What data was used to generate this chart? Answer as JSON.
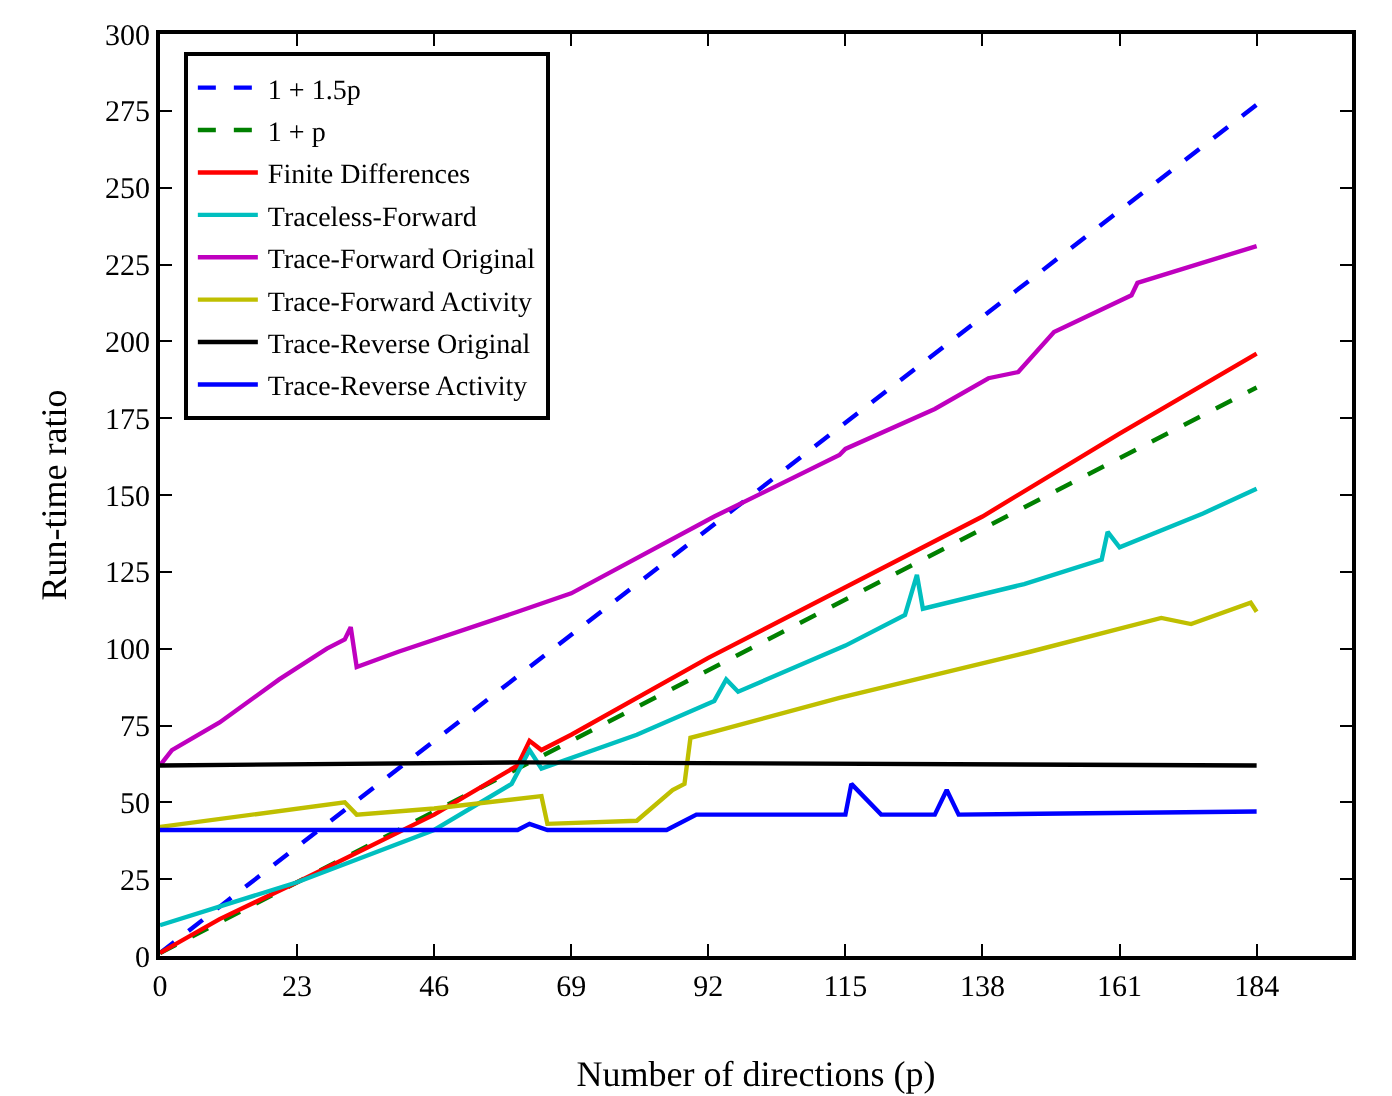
{
  "chart_data": {
    "type": "line",
    "xlabel": "Number of directions (p)",
    "ylabel": "Run-time ratio",
    "xlim": [
      0,
      200
    ],
    "ylim": [
      0,
      300
    ],
    "xticks": [
      0,
      23,
      46,
      69,
      92,
      115,
      138,
      161,
      184
    ],
    "yticks": [
      0,
      25,
      50,
      75,
      100,
      125,
      150,
      175,
      200,
      225,
      250,
      275,
      300
    ],
    "grid": false,
    "legend": "top left",
    "marker": "none",
    "series": [
      {
        "name": "1 + 1.5p",
        "color": "#0000ff",
        "line_style": "dashed",
        "x": [
          0,
          184
        ],
        "values": [
          1,
          277
        ]
      },
      {
        "name": "1 + p",
        "color": "#008000",
        "line_style": "dashed",
        "x": [
          0,
          184
        ],
        "values": [
          1,
          185
        ]
      },
      {
        "name": "Finite Differences",
        "color": "#ff0000",
        "line_style": "solid",
        "x": [
          0,
          10,
          23,
          46,
          60,
          62,
          64,
          69,
          92,
          115,
          138,
          161,
          184
        ],
        "values": [
          1,
          12,
          24,
          46,
          62,
          70,
          67,
          72,
          97,
          120,
          143,
          170,
          196
        ]
      },
      {
        "name": "Traceless-Forward",
        "color": "#00bfbf",
        "line_style": "solid",
        "x": [
          0,
          23,
          46,
          59,
          62,
          64,
          80,
          93,
          95,
          97,
          115,
          125,
          127,
          128,
          145,
          158,
          159,
          161,
          175,
          184
        ],
        "values": [
          10,
          24,
          41,
          56,
          67,
          61,
          72,
          83,
          90,
          86,
          101,
          111,
          124,
          113,
          121,
          129,
          138,
          133,
          144,
          152
        ]
      },
      {
        "name": "Trace-Forward Original",
        "color": "#bf00bf",
        "line_style": "solid",
        "x": [
          0,
          2,
          10,
          20,
          28,
          31,
          32,
          33,
          40,
          60,
          69,
          93,
          114,
          115,
          130,
          139,
          144,
          150,
          163,
          164,
          184
        ],
        "values": [
          62,
          67,
          76,
          90,
          100,
          103,
          107,
          94,
          99,
          112,
          118,
          143,
          163,
          165,
          178,
          188,
          190,
          203,
          215,
          219,
          231
        ]
      },
      {
        "name": "Trace-Forward Activity",
        "color": "#bfbf00",
        "line_style": "solid",
        "x": [
          0,
          31,
          33,
          46,
          64,
          65,
          80,
          86,
          88,
          89,
          93,
          114,
          146,
          168,
          173,
          183,
          184
        ],
        "values": [
          42,
          50,
          46,
          48,
          52,
          43,
          44,
          54,
          56,
          71,
          73,
          84,
          99,
          110,
          108,
          115,
          112
        ]
      },
      {
        "name": "Trace-Reverse Original",
        "color": "#000000",
        "line_style": "solid",
        "x": [
          0,
          60,
          184
        ],
        "values": [
          62,
          63,
          62
        ]
      },
      {
        "name": "Trace-Reverse Activity",
        "color": "#0000ff",
        "line_style": "solid",
        "x": [
          0,
          60,
          62,
          65,
          85,
          90,
          115,
          116,
          121,
          130,
          132,
          134,
          184
        ],
        "values": [
          41,
          41,
          43,
          41,
          41,
          46,
          46,
          56,
          46,
          46,
          54,
          46,
          47
        ]
      }
    ]
  }
}
